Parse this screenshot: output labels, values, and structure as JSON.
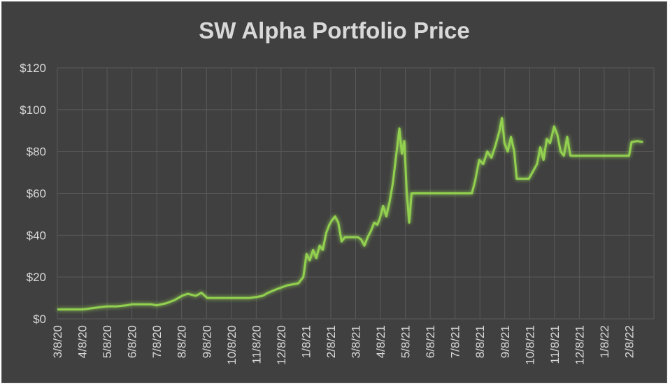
{
  "chart_data": {
    "type": "line",
    "title": "SW Alpha Portfolio Price",
    "xlabel": "",
    "ylabel": "",
    "ylim": [
      0,
      120
    ],
    "grid": true,
    "y_ticks": [
      "$0",
      "$20",
      "$40",
      "$60",
      "$80",
      "$100",
      "$120"
    ],
    "x_ticks": [
      "3/8/20",
      "4/8/20",
      "5/8/20",
      "6/8/20",
      "7/8/20",
      "8/8/20",
      "9/8/20",
      "10/8/20",
      "11/8/20",
      "12/8/20",
      "1/8/21",
      "2/8/21",
      "3/8/21",
      "4/8/21",
      "5/8/21",
      "6/8/21",
      "7/8/21",
      "8/8/21",
      "9/8/21",
      "10/8/21",
      "11/8/21",
      "12/8/21",
      "1/8/22",
      "2/8/22"
    ],
    "line_color": "#92d050",
    "series": [
      {
        "x": [
          "3/8/20",
          "3/20/20",
          "4/8/20",
          "4/18/20",
          "4/28/20",
          "5/8/20",
          "5/20/20",
          "6/1/20",
          "6/8/20",
          "6/20/20",
          "7/1/20",
          "7/8/20",
          "7/20/20",
          "7/30/20",
          "8/8/20",
          "8/15/20",
          "8/25/20",
          "9/1/20",
          "9/8/20",
          "9/20/20",
          "10/1/20",
          "10/8/20",
          "10/20/20",
          "10/30/20",
          "11/8/20",
          "11/15/20",
          "11/22/20",
          "12/1/20",
          "12/8/20",
          "12/15/20",
          "12/22/20",
          "12/29/20",
          "1/4/21",
          "1/8/21",
          "1/12/21",
          "1/16/21",
          "1/20/21",
          "1/24/21",
          "1/28/21",
          "2/1/21",
          "2/5/21",
          "2/8/21",
          "2/12/21",
          "2/16/21",
          "2/20/21",
          "2/24/21",
          "3/1/21",
          "3/8/21",
          "3/12/21",
          "3/16/21",
          "3/20/21",
          "3/24/21",
          "3/28/21",
          "4/1/21",
          "4/5/21",
          "4/8/21",
          "4/12/21",
          "4/16/21",
          "4/20/21",
          "4/24/21",
          "4/28/21",
          "5/2/21",
          "5/5/21",
          "5/8/21",
          "5/11/21",
          "5/14/21",
          "5/17/21",
          "5/20/21",
          "5/24/21",
          "6/8/21",
          "7/8/21",
          "7/30/21",
          "8/3/21",
          "8/8/21",
          "8/13/21",
          "8/18/21",
          "8/23/21",
          "8/28/21",
          "9/2/21",
          "9/5/21",
          "9/8/21",
          "9/12/21",
          "9/16/21",
          "9/20/21",
          "9/23/21",
          "9/27/21",
          "10/1/21",
          "10/8/21",
          "10/18/21",
          "10/22/21",
          "10/26/21",
          "10/30/21",
          "11/3/21",
          "11/8/21",
          "11/12/21",
          "11/16/21",
          "11/20/21",
          "11/24/21",
          "11/28/21",
          "12/8/21",
          "1/8/22",
          "2/8/22",
          "2/11/22",
          "2/18/22",
          "2/25/22"
        ],
        "y": [
          4.5,
          4.5,
          4.5,
          5.0,
          5.5,
          6.0,
          6.0,
          6.5,
          7.0,
          7.0,
          7.0,
          6.5,
          7.5,
          9.0,
          11.0,
          12.0,
          11.0,
          12.5,
          10.0,
          10.0,
          10.0,
          10.0,
          10.0,
          10.0,
          10.5,
          11.0,
          12.5,
          14.0,
          15.0,
          16.0,
          16.5,
          17.0,
          20.0,
          31.0,
          28.0,
          33.0,
          29.0,
          35.0,
          33.0,
          41.0,
          45.0,
          47.0,
          49.0,
          46.0,
          37.0,
          39.0,
          39.0,
          39.0,
          39.0,
          38.0,
          35.0,
          39.0,
          42.0,
          46.0,
          45.0,
          48.0,
          54.0,
          49.0,
          56.0,
          65.0,
          78.0,
          91.0,
          79.0,
          85.0,
          60.0,
          46.0,
          60.0,
          60.0,
          60.0,
          60.0,
          60.0,
          60.0,
          66.0,
          76.0,
          74.0,
          80.0,
          77.0,
          83.0,
          90.0,
          96.0,
          84.0,
          80.0,
          87.0,
          80.0,
          67.0,
          67.0,
          67.0,
          67.0,
          74.0,
          82.0,
          76.0,
          86.0,
          84.0,
          92.0,
          88.0,
          80.0,
          78.0,
          87.0,
          78.0,
          78.0,
          78.0,
          78.0,
          84.5,
          85.0,
          84.5
        ]
      }
    ]
  }
}
